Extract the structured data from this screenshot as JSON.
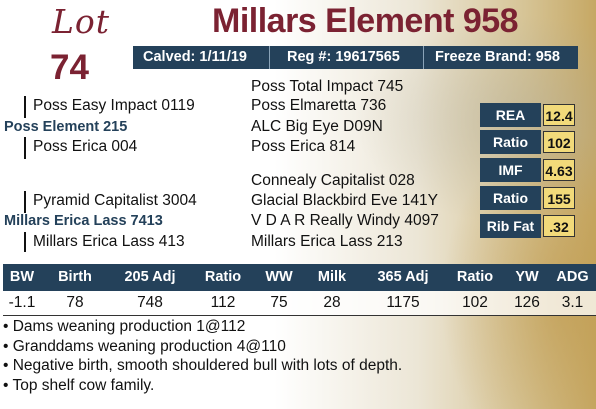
{
  "lot": {
    "word": "Lot",
    "number": "74"
  },
  "title": "Millars Element 958",
  "info": {
    "calved": "Calved: 1/11/19",
    "reg": "Reg #: 19617565",
    "freeze": "Freeze Brand: 958"
  },
  "pedigree": {
    "sss": "Poss Total Impact 745",
    "ss": "Poss Easy Impact 0119",
    "ssd": "Poss Elmaretta 736",
    "sire": "Poss Element 215",
    "sds": "ALC Big Eye D09N",
    "sd": "Poss Erica 004",
    "sdd": "Poss Erica 814",
    "dss": "Connealy Capitalist 028",
    "ds": "Pyramid Capitalist 3004",
    "dsd": "Glacial Blackbird Eve 141Y",
    "dam": "Millars Erica Lass 7413",
    "dds": "V D A R Really Windy 4097",
    "dd": "Millars Erica Lass 413",
    "ddd": "Millars Erica Lass 213"
  },
  "carcass": [
    {
      "label": "REA",
      "value": "12.4"
    },
    {
      "label": "Ratio",
      "value": "102"
    },
    {
      "label": "IMF",
      "value": "4.63"
    },
    {
      "label": "Ratio",
      "value": "155"
    },
    {
      "label": "Rib Fat",
      "value": ".32"
    }
  ],
  "performance": {
    "headers": [
      "BW",
      "Birth",
      "205 Adj",
      "Ratio",
      "WW",
      "Milk",
      "365 Adj",
      "Ratio",
      "YW",
      "ADG"
    ],
    "values": [
      "-1.1",
      "78",
      "748",
      "112",
      "75",
      "28",
      "1175",
      "102",
      "126",
      "3.1"
    ]
  },
  "notes": [
    "• Dams weaning production 1@112",
    "• Granddams weaning production 4@110",
    "• Negative birth, smooth shouldered bull with lots of depth.",
    "• Top shelf cow family."
  ]
}
